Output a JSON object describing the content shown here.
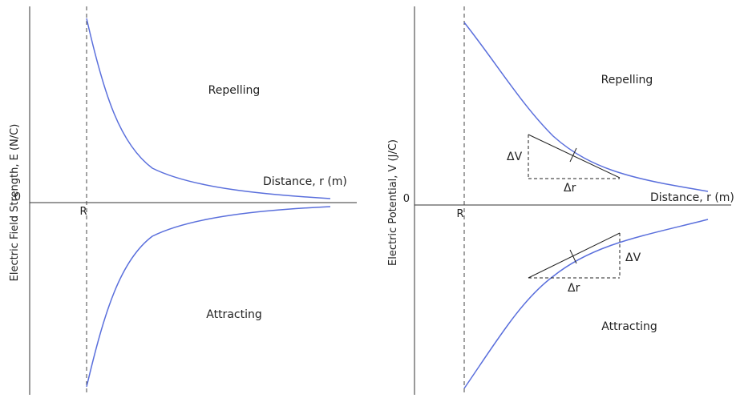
{
  "left_panel": {
    "y_axis_label": "Electric Field Strength, E (N/C)",
    "x_axis_label": "Distance, r (m)",
    "origin_label": "0",
    "radius_label": "R",
    "upper_region_label": "Repelling",
    "lower_region_label": "Attracting"
  },
  "right_panel": {
    "y_axis_label": "Electric Potential, V (J/C)",
    "x_axis_label": "Distance, r (m)",
    "origin_label": "0",
    "radius_label": "R",
    "upper_region_label": "Repelling",
    "lower_region_label": "Attracting",
    "upper_tangent": {
      "rise_label": "ΔV",
      "run_label": "Δr"
    },
    "lower_tangent": {
      "rise_label": "ΔV",
      "run_label": "Δr"
    }
  },
  "colors": {
    "curve": "#5a6fdc",
    "axis": "#333333",
    "dashed": "#444444",
    "tangent": "#222222"
  }
}
